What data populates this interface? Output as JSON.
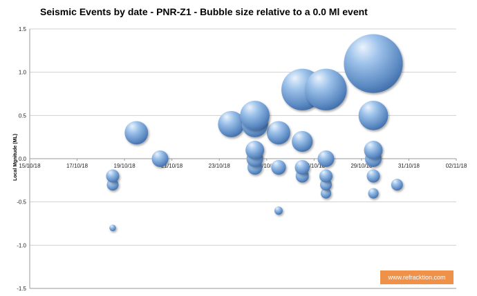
{
  "chart_data": {
    "type": "scatter",
    "title": "Seismic Events by date - PNR-Z1 - Bubble size relative to a 0.0 Ml event",
    "xlabel": "",
    "ylabel": "Local Mgnitude (ML)",
    "x_tick_labels": [
      "15/10/18",
      "17/10/18",
      "19/10/18",
      "21/10/18",
      "23/10/18",
      "25/10/18",
      "27/10/18",
      "29/10/18",
      "31/10/18",
      "02/11/18"
    ],
    "y_tick_labels": [
      "1.5",
      "1.0",
      "0.5",
      "0.0",
      "-0.5",
      "-1.0",
      "-1.5"
    ],
    "xlim": [
      "15/10/18",
      "02/11/18"
    ],
    "ylim": [
      -1.5,
      1.5
    ],
    "grid": true,
    "bubble_color": "#6f9fd4",
    "points": [
      {
        "x": "18/10/18",
        "y": -0.2
      },
      {
        "x": "18/10/18",
        "y": -0.3
      },
      {
        "x": "18/10/18",
        "y": -0.8
      },
      {
        "x": "19/10/18",
        "y": 0.3
      },
      {
        "x": "20/10/18",
        "y": 0.0
      },
      {
        "x": "23/10/18",
        "y": 0.4
      },
      {
        "x": "24/10/18",
        "y": 0.4
      },
      {
        "x": "24/10/18",
        "y": 0.5
      },
      {
        "x": "24/10/18",
        "y": 0.1
      },
      {
        "x": "24/10/18",
        "y": 0.0
      },
      {
        "x": "24/10/18",
        "y": -0.1
      },
      {
        "x": "25/10/18",
        "y": 0.3
      },
      {
        "x": "25/10/18",
        "y": -0.1
      },
      {
        "x": "25/10/18",
        "y": -0.6
      },
      {
        "x": "26/10/18",
        "y": 0.8
      },
      {
        "x": "26/10/18",
        "y": 0.2
      },
      {
        "x": "26/10/18",
        "y": -0.1
      },
      {
        "x": "26/10/18",
        "y": -0.2
      },
      {
        "x": "27/10/18",
        "y": 0.8
      },
      {
        "x": "27/10/18",
        "y": 0.0
      },
      {
        "x": "27/10/18",
        "y": -0.2
      },
      {
        "x": "27/10/18",
        "y": -0.3
      },
      {
        "x": "27/10/18",
        "y": -0.4
      },
      {
        "x": "29/10/18",
        "y": 1.1
      },
      {
        "x": "29/10/18",
        "y": 0.5
      },
      {
        "x": "29/10/18",
        "y": 0.1
      },
      {
        "x": "29/10/18",
        "y": 0.0
      },
      {
        "x": "29/10/18",
        "y": -0.2
      },
      {
        "x": "29/10/18",
        "y": -0.4
      },
      {
        "x": "30/10/18",
        "y": -0.3
      }
    ]
  },
  "watermark": {
    "text": "www.refracktion.com",
    "color": "#f0914a"
  }
}
